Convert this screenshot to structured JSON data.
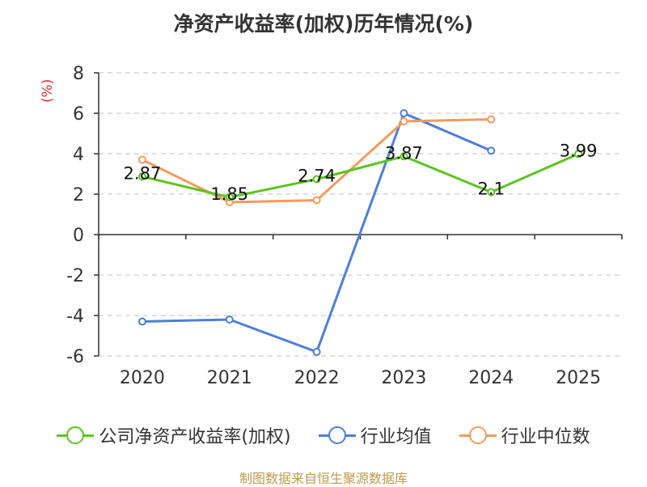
{
  "title": "净资产收益率(加权)历年情况(%)",
  "source": "制图数据来自恒生聚源数据库",
  "chart_data": {
    "type": "line",
    "title": "净资产收益率(加权)历年情况(%)",
    "ylabel": "(%)",
    "xlabel": "",
    "categories": [
      "2020",
      "2021",
      "2022",
      "2023",
      "2024",
      "2025"
    ],
    "ylim": [
      -6,
      8
    ],
    "yticks": [
      8,
      6,
      4,
      2,
      0,
      -2,
      -4,
      -6
    ],
    "grid": true,
    "legend_position": "bottom",
    "series": [
      {
        "name": "公司净资产收益率(加权)",
        "color": "#5cc41f",
        "values": [
          2.87,
          1.85,
          2.74,
          3.87,
          2.1,
          3.99
        ],
        "labels": [
          "2.87",
          "1.85",
          "2.74",
          "3.87",
          "2.1",
          "3.99"
        ]
      },
      {
        "name": "行业均值",
        "color": "#4d7fd8",
        "values": [
          -4.3,
          -4.2,
          -5.8,
          6.0,
          4.15,
          null
        ]
      },
      {
        "name": "行业中位数",
        "color": "#f59a5c",
        "values": [
          3.7,
          1.6,
          1.7,
          5.6,
          5.7,
          null
        ]
      }
    ]
  }
}
